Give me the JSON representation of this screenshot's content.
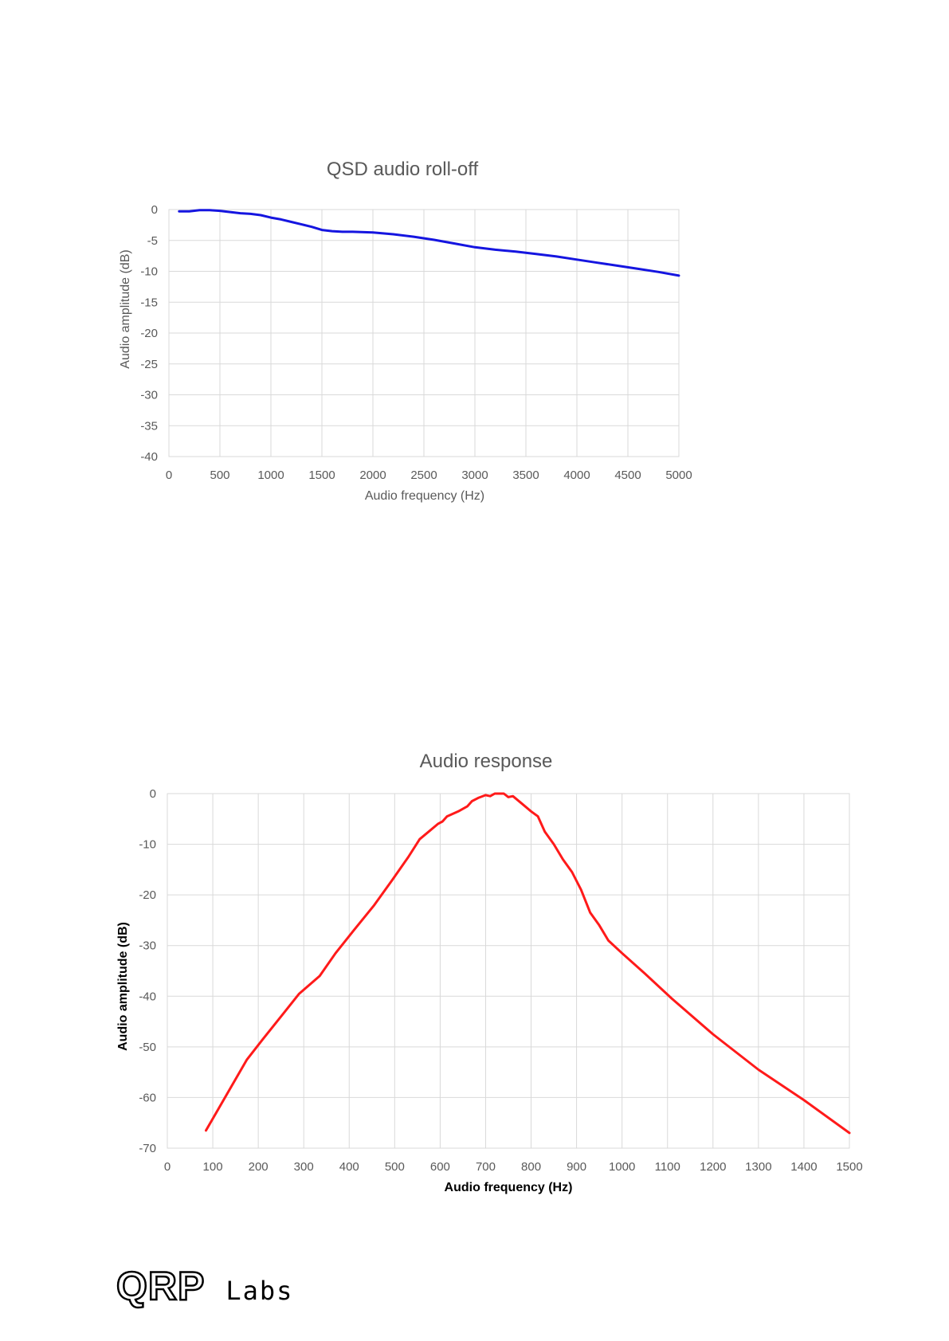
{
  "chart_data": [
    {
      "type": "line",
      "title": "QSD audio roll-off",
      "xlabel": "Audio frequency (Hz)",
      "ylabel": "Audio amplitude (dB)",
      "xlim": [
        0,
        5000
      ],
      "ylim": [
        -40,
        0
      ],
      "xticks": [
        0,
        500,
        1000,
        1500,
        2000,
        2500,
        3000,
        3500,
        4000,
        4500,
        5000
      ],
      "yticks": [
        0,
        -5,
        -10,
        -15,
        -20,
        -25,
        -30,
        -35,
        -40
      ],
      "grid": true,
      "legend": "none",
      "series": [
        {
          "color": "#1515e0",
          "x": [
            100,
            200,
            300,
            400,
            500,
            600,
            700,
            800,
            900,
            1000,
            1100,
            1200,
            1300,
            1400,
            1500,
            1600,
            1700,
            1800,
            2000,
            2200,
            2400,
            2600,
            2800,
            3000,
            3200,
            3400,
            3600,
            3800,
            4000,
            4200,
            4400,
            4600,
            4800,
            5000
          ],
          "y": [
            -0.3,
            -0.3,
            -0.1,
            -0.1,
            -0.2,
            -0.4,
            -0.6,
            -0.7,
            -0.9,
            -1.3,
            -1.6,
            -2.0,
            -2.4,
            -2.8,
            -3.3,
            -3.5,
            -3.6,
            -3.6,
            -3.7,
            -4.0,
            -4.4,
            -4.9,
            -5.5,
            -6.1,
            -6.5,
            -6.8,
            -7.2,
            -7.6,
            -8.1,
            -8.6,
            -9.1,
            -9.6,
            -10.1,
            -10.7
          ]
        }
      ]
    },
    {
      "type": "line",
      "title": "Audio response",
      "xlabel": "Audio frequency (Hz)",
      "ylabel": "Audio amplitude (dB)",
      "xlim": [
        0,
        1500
      ],
      "ylim": [
        -70,
        0
      ],
      "xticks": [
        0,
        100,
        200,
        300,
        400,
        500,
        600,
        700,
        800,
        900,
        1000,
        1100,
        1200,
        1300,
        1400,
        1500
      ],
      "yticks": [
        0,
        -10,
        -20,
        -30,
        -40,
        -50,
        -60,
        -70
      ],
      "grid": true,
      "legend": "none",
      "series": [
        {
          "color": "#ff1a1a",
          "x": [
            85,
            130,
            175,
            210,
            250,
            290,
            335,
            370,
            410,
            455,
            495,
            530,
            555,
            575,
            595,
            605,
            615,
            640,
            660,
            670,
            685,
            700,
            710,
            720,
            740,
            750,
            760,
            780,
            800,
            815,
            830,
            850,
            870,
            890,
            910,
            930,
            950,
            970,
            1000,
            1050,
            1110,
            1200,
            1300,
            1400,
            1500
          ],
          "y": [
            -66.5,
            -59.5,
            -52.5,
            -48.5,
            -44,
            -39.5,
            -36,
            -31.5,
            -27,
            -22,
            -17,
            -12.5,
            -9,
            -7.5,
            -6,
            -5.5,
            -4.5,
            -3.5,
            -2.5,
            -1.5,
            -0.8,
            -0.3,
            -0.5,
            0,
            0,
            -0.7,
            -0.5,
            -2,
            -3.5,
            -4.5,
            -7.5,
            -10,
            -13,
            -15.5,
            -19,
            -23.5,
            -26,
            -29,
            -31.5,
            -35.5,
            -40.5,
            -47.5,
            -54.5,
            -60.5,
            -67
          ]
        }
      ]
    }
  ],
  "logo": {
    "text": "QRP Labs"
  }
}
